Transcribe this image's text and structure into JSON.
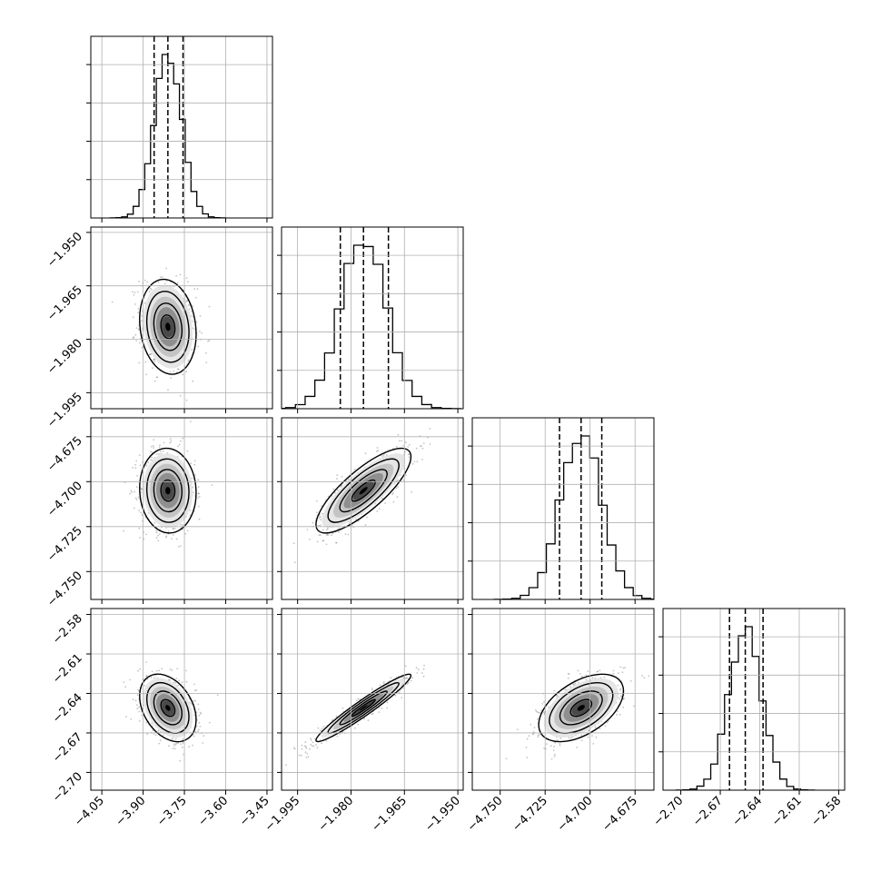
{
  "chart_data": {
    "type": "corner",
    "n_params": 4,
    "grid": true,
    "xticks": [
      [
        "-4.05",
        "-3.90",
        "-3.75",
        "-3.60",
        "-3.45"
      ],
      [
        "-1.995",
        "-1.980",
        "-1.965",
        "-1.950"
      ],
      [
        "-4.750",
        "-4.725",
        "-4.700",
        "-4.675"
      ],
      [
        "-2.70",
        "-2.67",
        "-2.64",
        "-2.61",
        "-2.58"
      ]
    ],
    "yticks": [
      [],
      [
        "-1.950",
        "-1.965",
        "-1.980",
        "-1.995"
      ],
      [
        "-4.675",
        "-4.700",
        "-4.725",
        "-4.750"
      ],
      [
        "-2.58",
        "-2.61",
        "-2.64",
        "-2.67",
        "-2.70"
      ]
    ],
    "params": [
      {
        "range": [
          -4.09,
          -3.43
        ],
        "median": -3.81,
        "q16": -3.86,
        "q84": -3.755,
        "sigma": 0.05
      },
      {
        "range": [
          -1.9995,
          -1.9485
        ],
        "median": -1.9765,
        "q16": -1.983,
        "q84": -1.9695,
        "sigma": 0.0065
      },
      {
        "range": [
          -4.7655,
          -4.6645
        ],
        "median": -4.705,
        "q16": -4.717,
        "q84": -4.6935,
        "sigma": 0.0115
      },
      {
        "range": [
          -2.7135,
          -2.5755
        ],
        "median": -2.651,
        "q16": -2.663,
        "q84": -2.6375,
        "sigma": 0.0125
      }
    ],
    "correlations": [
      {
        "row": 1,
        "col": 0,
        "rho": -0.15
      },
      {
        "row": 2,
        "col": 0,
        "rho": -0.05
      },
      {
        "row": 2,
        "col": 1,
        "rho": 0.8
      },
      {
        "row": 3,
        "col": 0,
        "rho": -0.35
      },
      {
        "row": 3,
        "col": 1,
        "rho": 0.96
      },
      {
        "row": 3,
        "col": 2,
        "rho": 0.5
      }
    ],
    "contour_levels_sigma": [
      0.5,
      1.0,
      1.5,
      2.0
    ]
  }
}
